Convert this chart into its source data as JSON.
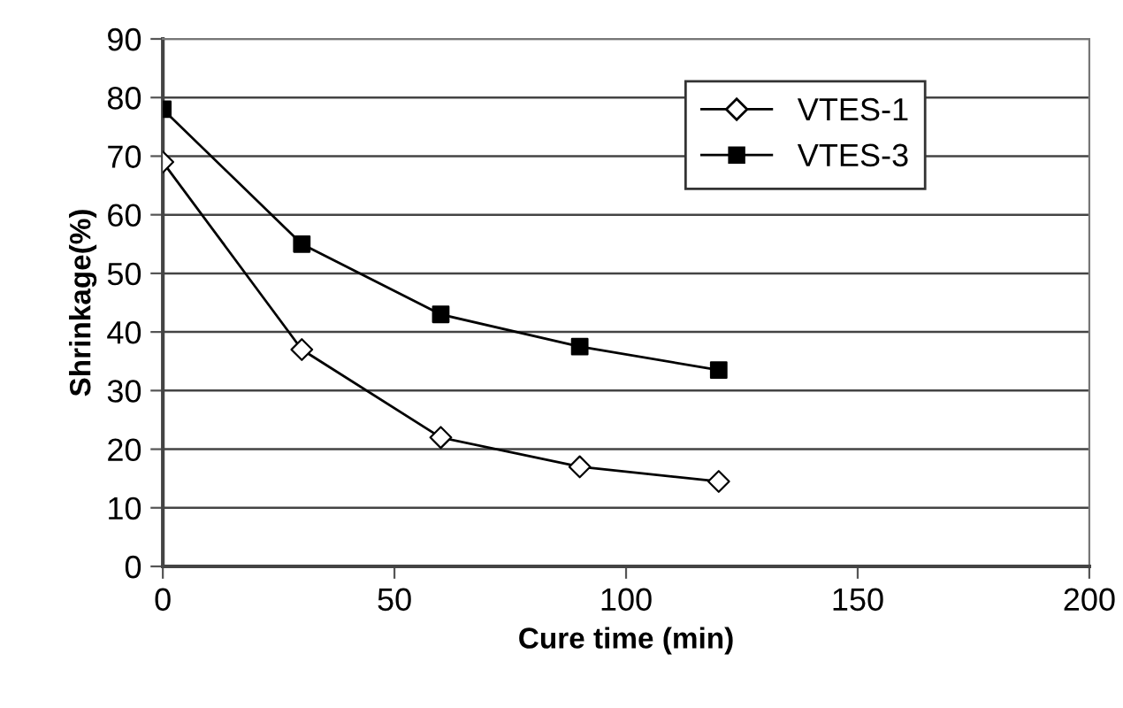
{
  "chart_data": {
    "type": "line",
    "xlabel": "Cure time (min)",
    "ylabel": "Shrinkage(%)",
    "x": [
      0,
      30,
      60,
      90,
      120
    ],
    "series": [
      {
        "name": "VTES-1",
        "color": "#000000",
        "marker": "diamond",
        "values": [
          69,
          37,
          22,
          17,
          14.5
        ]
      },
      {
        "name": "VTES-3",
        "color": "#000000",
        "marker": "square",
        "values": [
          78,
          55,
          43,
          37.5,
          33.5
        ]
      }
    ],
    "xlim": [
      0,
      200
    ],
    "xticks": [
      0,
      50,
      100,
      150,
      200
    ],
    "ylim": [
      0,
      90
    ],
    "yticks": [
      0,
      10,
      20,
      30,
      40,
      50,
      60,
      70,
      80,
      90
    ],
    "grid": "y",
    "legend": "top right",
    "line_style": "solid"
  }
}
